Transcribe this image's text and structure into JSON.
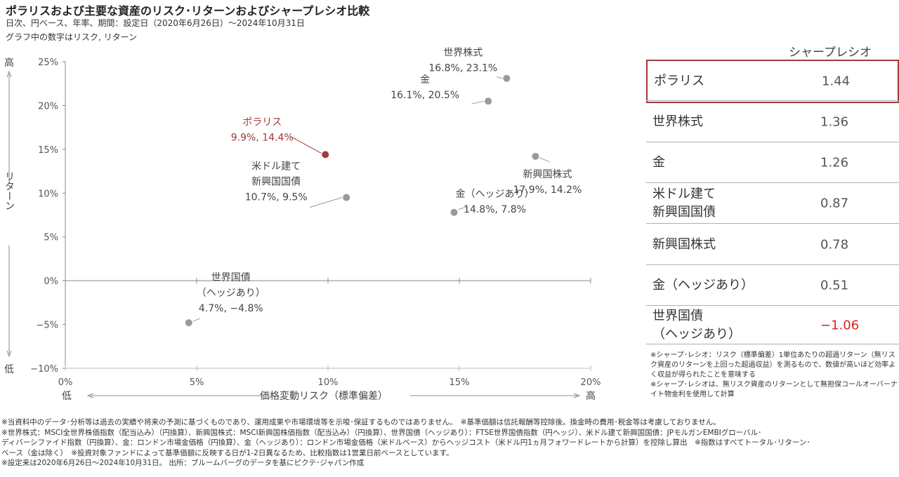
{
  "header": {
    "title": "ポラリスおよび主要な資産のリスク･リターンおよびシャープレシオ比較",
    "subtitle1": "日次、円ベース、年率、期間：設定日（2020年6月26日）～2024年10月31日",
    "subtitle2": "グラフ中の数字はリスク, リターン"
  },
  "chart_data": {
    "type": "scatter",
    "xlabel": "価格変動リスク（標準偏差）",
    "ylabel": "リターン",
    "x_low_label": "低",
    "x_high_label": "高",
    "y_high_label": "高",
    "y_low_label": "低",
    "xlim": [
      0,
      20
    ],
    "ylim": [
      -10,
      25
    ],
    "x_ticks": [
      "0%",
      "5%",
      "10%",
      "15%",
      "20%"
    ],
    "y_ticks": [
      "25%",
      "20%",
      "15%",
      "10%",
      "5%",
      "0%",
      "−5%",
      "−10%"
    ],
    "points": [
      {
        "name": "世界株式",
        "label_lines": [
          "世界株式",
          "16.8%, 23.1%"
        ],
        "x": 16.8,
        "y": 23.1,
        "highlight": false
      },
      {
        "name": "金",
        "label_lines": [
          "金",
          "16.1%, 20.5%"
        ],
        "x": 16.1,
        "y": 20.5,
        "highlight": false
      },
      {
        "name": "ポラリス",
        "label_lines": [
          "ポラリス",
          "9.9%, 14.4%"
        ],
        "x": 9.9,
        "y": 14.4,
        "highlight": true
      },
      {
        "name": "新興国株式",
        "label_lines": [
          "新興国株式",
          "17.9%, 14.2%"
        ],
        "x": 17.9,
        "y": 14.2,
        "highlight": false
      },
      {
        "name": "米ドル建て新興国国債",
        "label_lines": [
          "米ドル建て",
          "新興国国債",
          "10.7%, 9.5%"
        ],
        "x": 10.7,
        "y": 9.5,
        "highlight": false
      },
      {
        "name": "金（ヘッジあり）",
        "label_lines": [
          "金（ヘッジあり）",
          "14.8%, 7.8%"
        ],
        "x": 14.8,
        "y": 7.8,
        "highlight": false
      },
      {
        "name": "世界国債（ヘッジあり）",
        "label_lines": [
          "世界国債",
          "（ヘッジあり）",
          "4.7%, −4.8%"
        ],
        "x": 4.7,
        "y": -4.8,
        "highlight": false
      }
    ],
    "colors": {
      "point": "#9a9a9a",
      "highlight": "#a33a3a",
      "axis": "#888888"
    }
  },
  "sharpe": {
    "header": "シャープレシオ",
    "rows": [
      {
        "name": "ポラリス",
        "value": "1.44",
        "negative": false
      },
      {
        "name": "世界株式",
        "value": "1.36",
        "negative": false
      },
      {
        "name": "金",
        "value": "1.26",
        "negative": false
      },
      {
        "name": "米ドル建て\n新興国国債",
        "value": "0.87",
        "negative": false
      },
      {
        "name": "新興国株式",
        "value": "0.78",
        "negative": false
      },
      {
        "name": "金（ヘッジあり）",
        "value": "0.51",
        "negative": false
      },
      {
        "name": "世界国債\n（ヘッジあり）",
        "value": "−1.06",
        "negative": true
      }
    ],
    "notes": [
      "※シャープ･レシオ：リスク（標準偏差）1単位あたりの超過リターン（無リスク資産のリターンを上回った超過収益）を測るもので、数値が高いほど効率よく収益が得られたことを意味する",
      "※シャープ･レシオは、無リスク資産のリターンとして無担保コールオーバーナイト物金利を使用して計算"
    ]
  },
  "footnotes": [
    "※当資料中のデータ･分析等は過去の実績や将来の予測に基づくものであり、運用成果や市場環境等を示唆･保証するものではありません。　※基準価額は信託報酬等控除後。換金時の費用･税金等は考慮しておりません。",
    "※世界株式：MSCI全世界株価指数（配当込み）（円換算）、新興国株式：MSCI新興国株価指数（配当込み）（円換算）、世界国債（ヘッジあり）：FTSE世界国債指数（円ヘッジ）、米ドル建て新興国国債：JPモルガンEMBIグローバル･",
    "ディバーシファイド指数（円換算）、金：ロンドン市場金価格（円換算）、金（ヘッジあり）：ロンドン市場金価格（米ドルベース）からヘッジコスト（米ドル円1ヵ月フォワードレートから計算）を控除し算出　※指数はすべてトータル･リターン･",
    "ベース（金は除く）　※投資対象ファンドによって基準価額に反映する日が1-2日異なるため、比較指数は1営業日前ベースとしています。",
    "※設定来は2020年6月26日～2024年10月31日。 出所：ブルームバーグのデータを基にピクテ･ジャパン作成"
  ]
}
